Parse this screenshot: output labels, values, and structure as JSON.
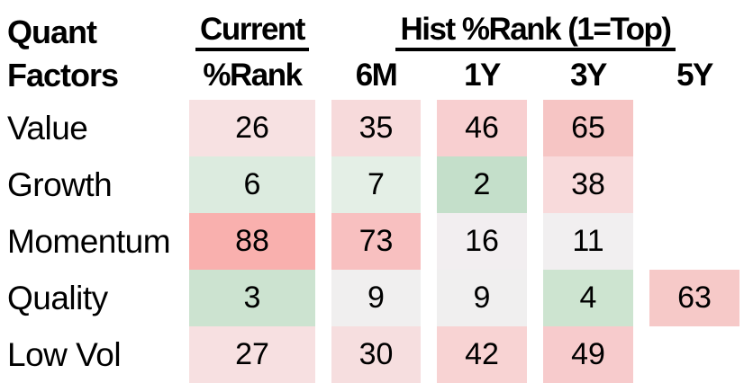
{
  "header": {
    "corner": {
      "line1": "Quant",
      "line2": "Factors"
    },
    "current_group": "Current",
    "hist_group": "Hist %Rank (1=Top)",
    "columns": [
      "%Rank",
      "6M",
      "1Y",
      "3Y",
      "5Y"
    ]
  },
  "table": {
    "rows": [
      {
        "label": "Value",
        "cells": [
          {
            "v": "26",
            "bg": "#f7e1e2"
          },
          {
            "v": "35",
            "bg": "#f7dadb"
          },
          {
            "v": "46",
            "bg": "#f8cfd0"
          },
          {
            "v": "65",
            "bg": "#f6c5c4"
          },
          {
            "v": "",
            "bg": ""
          }
        ]
      },
      {
        "label": "Growth",
        "cells": [
          {
            "v": "6",
            "bg": "#dcebdf"
          },
          {
            "v": "7",
            "bg": "#e4efe6"
          },
          {
            "v": "2",
            "bg": "#c4dfca"
          },
          {
            "v": "38",
            "bg": "#f8dadb"
          },
          {
            "v": "",
            "bg": ""
          }
        ]
      },
      {
        "label": "Momentum",
        "cells": [
          {
            "v": "88",
            "bg": "#f9b0ae"
          },
          {
            "v": "73",
            "bg": "#f8c0c0"
          },
          {
            "v": "16",
            "bg": "#f2eef0"
          },
          {
            "v": "11",
            "bg": "#f1eff0"
          },
          {
            "v": "",
            "bg": ""
          }
        ]
      },
      {
        "label": "Quality",
        "cells": [
          {
            "v": "3",
            "bg": "#cce3d0"
          },
          {
            "v": "9",
            "bg": "#f0efef"
          },
          {
            "v": "9",
            "bg": "#f0efef"
          },
          {
            "v": "4",
            "bg": "#cde4d0"
          },
          {
            "v": "63",
            "bg": "#f6c9c8"
          }
        ]
      },
      {
        "label": "Low Vol",
        "cells": [
          {
            "v": "27",
            "bg": "#f7e0e1"
          },
          {
            "v": "30",
            "bg": "#f6dedf"
          },
          {
            "v": "42",
            "bg": "#f8d3d3"
          },
          {
            "v": "49",
            "bg": "#f7cbcc"
          },
          {
            "v": "",
            "bg": ""
          }
        ]
      }
    ]
  },
  "colors": {
    "rank_top_green": "#c4dfca",
    "rank_bottom_red": "#f9b0ae",
    "neutral": "#f1eff0",
    "text": "#000000"
  },
  "chart_data": {
    "type": "heatmap",
    "title": "Quant Factors %Rank",
    "rows": [
      "Value",
      "Growth",
      "Momentum",
      "Quality",
      "Low Vol"
    ],
    "columns": [
      "Current %Rank",
      "6M",
      "1Y",
      "3Y",
      "5Y"
    ],
    "values": [
      [
        26,
        35,
        46,
        65,
        null
      ],
      [
        6,
        7,
        2,
        38,
        null
      ],
      [
        88,
        73,
        16,
        11,
        null
      ],
      [
        3,
        9,
        9,
        4,
        63
      ],
      [
        27,
        30,
        42,
        49,
        null
      ]
    ],
    "scale_note": "1=Top; low values shaded green, high values shaded red",
    "value_range": [
      1,
      100
    ]
  }
}
